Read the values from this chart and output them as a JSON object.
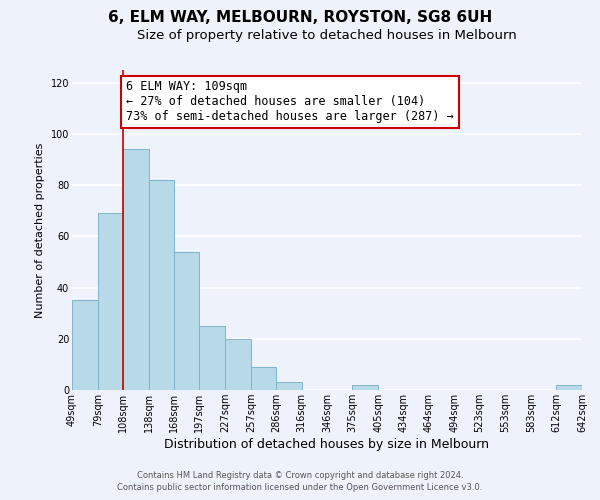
{
  "title": "6, ELM WAY, MELBOURN, ROYSTON, SG8 6UH",
  "subtitle": "Size of property relative to detached houses in Melbourn",
  "xlabel": "Distribution of detached houses by size in Melbourn",
  "ylabel": "Number of detached properties",
  "bar_edges": [
    49,
    79,
    108,
    138,
    168,
    197,
    227,
    257,
    286,
    316,
    346,
    375,
    405,
    434,
    464,
    494,
    523,
    553,
    583,
    612,
    642
  ],
  "bar_heights": [
    35,
    69,
    94,
    82,
    54,
    25,
    20,
    9,
    3,
    0,
    0,
    2,
    0,
    0,
    0,
    0,
    0,
    0,
    0,
    2
  ],
  "tick_labels": [
    "49sqm",
    "79sqm",
    "108sqm",
    "138sqm",
    "168sqm",
    "197sqm",
    "227sqm",
    "257sqm",
    "286sqm",
    "316sqm",
    "346sqm",
    "375sqm",
    "405sqm",
    "434sqm",
    "464sqm",
    "494sqm",
    "523sqm",
    "553sqm",
    "583sqm",
    "612sqm",
    "642sqm"
  ],
  "bar_color": "#b8d9e8",
  "bar_edge_color": "#7fb3cc",
  "annotation_text_line1": "6 ELM WAY: 109sqm",
  "annotation_text_line2": "← 27% of detached houses are smaller (104)",
  "annotation_text_line3": "73% of semi-detached houses are larger (287) →",
  "redline_x": 108,
  "ylim": [
    0,
    125
  ],
  "yticks": [
    0,
    20,
    40,
    60,
    80,
    100,
    120
  ],
  "footer_line1": "Contains HM Land Registry data © Crown copyright and database right 2024.",
  "footer_line2": "Contains public sector information licensed under the Open Government Licence v3.0.",
  "background_color": "#eef2fa",
  "grid_color": "#ffffff",
  "annotation_box_color": "#ffffff",
  "annotation_box_border": "#cc0000",
  "redline_color": "#cc0000",
  "title_fontsize": 11,
  "subtitle_fontsize": 9.5,
  "xlabel_fontsize": 9,
  "ylabel_fontsize": 8,
  "tick_fontsize": 7,
  "annotation_fontsize": 8.5,
  "footer_fontsize": 6
}
